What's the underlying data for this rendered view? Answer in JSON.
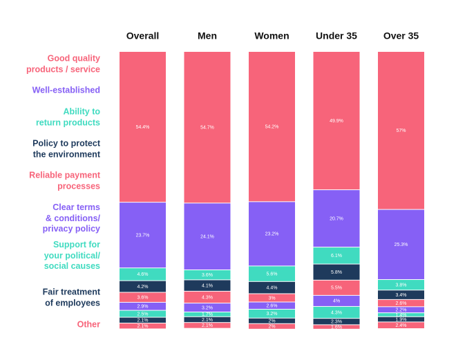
{
  "chart_data": {
    "type": "stacked-bar",
    "categories": [
      "Overall",
      "Men",
      "Women",
      "Under 35",
      "Over 35"
    ],
    "ylim": [
      0,
      100
    ],
    "series": [
      {
        "name": "Good quality\nproducts / service",
        "color": "#f7647a",
        "values": [
          54.4,
          54.7,
          54.2,
          49.9,
          57
        ],
        "value_labels": [
          "54.4%",
          "54.7%",
          "54.2%",
          "49.9%",
          "57%"
        ]
      },
      {
        "name": "Well-established",
        "color": "#8660f5",
        "values": [
          23.7,
          24.1,
          23.2,
          20.7,
          25.3
        ],
        "value_labels": [
          "23.7%",
          "24.1%",
          "23.2%",
          "20.7%",
          "25.3%"
        ]
      },
      {
        "name": "Ability to\nreturn products",
        "color": "#40dbc0",
        "values": [
          4.6,
          3.6,
          5.6,
          6.1,
          3.8
        ],
        "value_labels": [
          "4.6%",
          "3.6%",
          "5.6%",
          "6.1%",
          "3.8%"
        ]
      },
      {
        "name": "Policy to protect\nthe environment",
        "color": "#1e3a5c",
        "values": [
          4.2,
          4.1,
          4.4,
          5.8,
          3.4
        ],
        "value_labels": [
          "4.2%",
          "4.1%",
          "4.4%",
          "5.8%",
          "3.4%"
        ]
      },
      {
        "name": "Reliable payment\nprocesses",
        "color": "#f7647a",
        "values": [
          3.6,
          4.3,
          3,
          5.5,
          2.6
        ],
        "value_labels": [
          "3.6%",
          "4.3%",
          "3%",
          "5.5%",
          "2.6%"
        ]
      },
      {
        "name": "Clear terms\n& conditions/\nprivacy policy",
        "color": "#8660f5",
        "values": [
          2.9,
          3.2,
          2.6,
          4,
          2.2
        ],
        "value_labels": [
          "2.9%",
          "3.2%",
          "2.6%",
          "4%",
          "2.2%"
        ]
      },
      {
        "name": "Support for\nyour political/\nsocial causes",
        "color": "#40dbc0",
        "values": [
          2.5,
          1.7,
          3.2,
          4.3,
          1.4
        ],
        "value_labels": [
          "2.5%",
          "1.7%",
          "3.2%",
          "4.3%",
          "1.4%"
        ]
      },
      {
        "name": "Fair treatment\nof employees",
        "color": "#1e3a5c",
        "values": [
          2.1,
          2.1,
          2,
          2.3,
          1.9
        ],
        "value_labels": [
          "2.1%",
          "2.1%",
          "2%",
          "2.3%",
          "1.9%"
        ]
      },
      {
        "name": "Other",
        "color": "#f7647a",
        "values": [
          2.1,
          2.1,
          2,
          1.6,
          2.4
        ],
        "value_labels": [
          "2.1%",
          "2.1%",
          "2%",
          "1.6%",
          "2.4%"
        ]
      }
    ]
  }
}
